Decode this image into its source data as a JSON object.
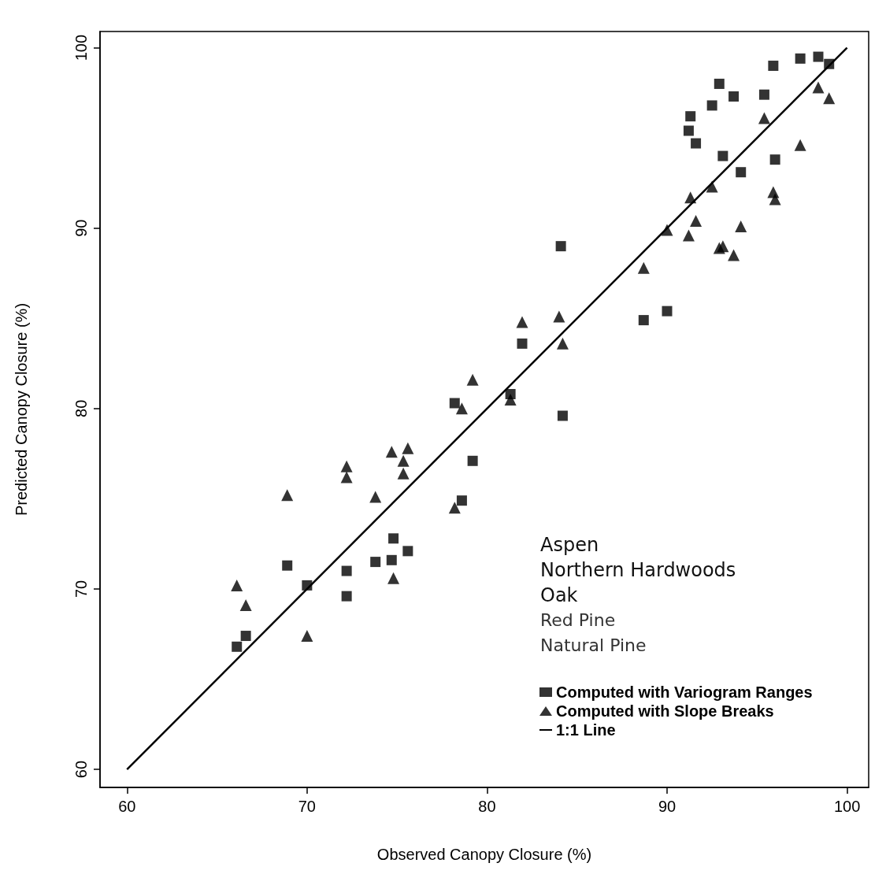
{
  "chart_data": {
    "type": "scatter",
    "xlabel": "Observed Canopy Closure (%)",
    "ylabel": "Predicted Canopy Closure (%)",
    "xlim": [
      58.5,
      101.2
    ],
    "ylim": [
      59,
      100.9
    ],
    "xticks": [
      60,
      70,
      80,
      90,
      100
    ],
    "yticks": [
      60,
      70,
      80,
      90,
      100
    ],
    "grid": false,
    "legend": "bottom right",
    "annotations": [
      "Aspen",
      "Northern Hardwoods",
      "Oak",
      "Red Pine",
      "Natural Pine"
    ],
    "series": [
      {
        "name": "Computed with Variogram Ranges",
        "marker": "square",
        "color": "#000000",
        "x": [
          84.1,
          81.95,
          78.2,
          81.3,
          84.2,
          79.2,
          78.6,
          74.8,
          75.6,
          73.8,
          74.7,
          72.2,
          70.0,
          72.2,
          68.9,
          66.6,
          66.1,
          95.9,
          97.4,
          98.4,
          99.0,
          92.9,
          93.7,
          95.4,
          92.5,
          91.3,
          91.2,
          91.6,
          93.1,
          94.1,
          96.0,
          88.7,
          90.0
        ],
        "values": [
          89.0,
          83.6,
          80.3,
          80.8,
          79.6,
          77.1,
          74.9,
          72.8,
          72.1,
          71.5,
          71.6,
          71.0,
          70.2,
          69.6,
          71.3,
          67.4,
          66.8,
          99.0,
          99.4,
          99.5,
          99.1,
          98.0,
          97.3,
          97.4,
          96.8,
          96.2,
          95.4,
          94.7,
          94.0,
          93.1,
          93.8,
          84.9,
          85.4
        ]
      },
      {
        "name": "Computed with Slope Breaks",
        "marker": "triangle",
        "color": "#000000",
        "x": [
          81.3,
          81.95,
          84.0,
          84.2,
          79.2,
          78.6,
          74.7,
          75.6,
          75.35,
          75.35,
          72.2,
          72.2,
          68.9,
          73.8,
          78.2,
          74.8,
          66.1,
          66.6,
          70.0,
          98.4,
          99.0,
          95.4,
          97.4,
          92.5,
          90.0,
          91.3,
          91.6,
          91.2,
          94.1,
          92.9,
          93.1,
          93.7,
          95.9,
          96.0,
          88.7
        ],
        "values": [
          80.5,
          84.8,
          85.1,
          83.6,
          81.6,
          80.0,
          77.6,
          77.8,
          77.1,
          76.4,
          76.8,
          76.2,
          75.2,
          75.1,
          74.5,
          70.6,
          70.2,
          69.1,
          67.4,
          97.8,
          97.2,
          96.1,
          94.6,
          92.3,
          89.9,
          91.7,
          90.4,
          89.6,
          90.1,
          88.9,
          89.0,
          88.5,
          92.0,
          91.6,
          87.8
        ]
      },
      {
        "name": "1:1 Line",
        "type": "line",
        "marker": "none",
        "line_style": "solid",
        "color": "#000000",
        "x": [
          60,
          100
        ],
        "values": [
          60,
          100
        ]
      }
    ]
  }
}
